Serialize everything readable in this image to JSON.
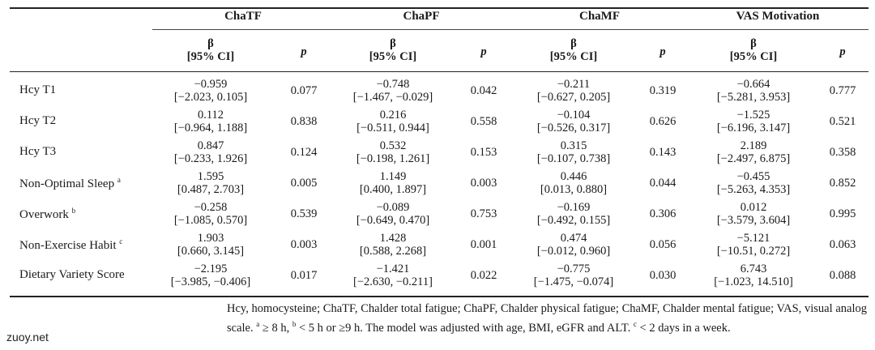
{
  "groups": [
    "ChaTF",
    "ChaPF",
    "ChaMF",
    "VAS Motivation"
  ],
  "beta_header": [
    "β",
    "[95% CI]"
  ],
  "p_header": "p",
  "rows": [
    {
      "label": "Hcy T1",
      "sup": "",
      "cells": [
        {
          "beta": "−0.959",
          "ci": "[−2.023, 0.105]",
          "p": "0.077"
        },
        {
          "beta": "−0.748",
          "ci": "[−1.467, −0.029]",
          "p": "0.042"
        },
        {
          "beta": "−0.211",
          "ci": "[−0.627, 0.205]",
          "p": "0.319"
        },
        {
          "beta": "−0.664",
          "ci": "[−5.281, 3.953]",
          "p": "0.777"
        }
      ]
    },
    {
      "label": "Hcy T2",
      "sup": "",
      "cells": [
        {
          "beta": "0.112",
          "ci": "[−0.964, 1.188]",
          "p": "0.838"
        },
        {
          "beta": "0.216",
          "ci": "[−0.511, 0.944]",
          "p": "0.558"
        },
        {
          "beta": "−0.104",
          "ci": "[−0.526, 0.317]",
          "p": "0.626"
        },
        {
          "beta": "−1.525",
          "ci": "[−6.196, 3.147]",
          "p": "0.521"
        }
      ]
    },
    {
      "label": "Hcy T3",
      "sup": "",
      "cells": [
        {
          "beta": "0.847",
          "ci": "[−0.233, 1.926]",
          "p": "0.124"
        },
        {
          "beta": "0.532",
          "ci": "[−0.198, 1.261]",
          "p": "0.153"
        },
        {
          "beta": "0.315",
          "ci": "[−0.107, 0.738]",
          "p": "0.143"
        },
        {
          "beta": "2.189",
          "ci": "[−2.497, 6.875]",
          "p": "0.358"
        }
      ]
    },
    {
      "label": "Non-Optimal Sleep",
      "sup": "a",
      "cells": [
        {
          "beta": "1.595",
          "ci": "[0.487, 2.703]",
          "p": "0.005"
        },
        {
          "beta": "1.149",
          "ci": "[0.400, 1.897]",
          "p": "0.003"
        },
        {
          "beta": "0.446",
          "ci": "[0.013, 0.880]",
          "p": "0.044"
        },
        {
          "beta": "−0.455",
          "ci": "[−5.263, 4.353]",
          "p": "0.852"
        }
      ]
    },
    {
      "label": "Overwork",
      "sup": "b",
      "cells": [
        {
          "beta": "−0.258",
          "ci": "[−1.085, 0.570]",
          "p": "0.539"
        },
        {
          "beta": "−0.089",
          "ci": "[−0.649, 0.470]",
          "p": "0.753"
        },
        {
          "beta": "−0.169",
          "ci": "[−0.492, 0.155]",
          "p": "0.306"
        },
        {
          "beta": "0.012",
          "ci": "[−3.579, 3.604]",
          "p": "0.995"
        }
      ]
    },
    {
      "label": "Non-Exercise Habit",
      "sup": "c",
      "cells": [
        {
          "beta": "1.903",
          "ci": "[0.660, 3.145]",
          "p": "0.003"
        },
        {
          "beta": "1.428",
          "ci": "[0.588, 2.268]",
          "p": "0.001"
        },
        {
          "beta": "0.474",
          "ci": "[−0.012, 0.960]",
          "p": "0.056"
        },
        {
          "beta": "−5.121",
          "ci": "[−10.51, 0.272]",
          "p": "0.063"
        }
      ]
    },
    {
      "label": "Dietary Variety Score",
      "sup": "",
      "cells": [
        {
          "beta": "−2.195",
          "ci": "[−3.985, −0.406]",
          "p": "0.017"
        },
        {
          "beta": "−1.421",
          "ci": "[−2.630, −0.211]",
          "p": "0.022"
        },
        {
          "beta": "−0.775",
          "ci": "[−1.475, −0.074]",
          "p": "0.030"
        },
        {
          "beta": "6.743",
          "ci": "[−1.023, 14.510]",
          "p": "0.088"
        }
      ]
    }
  ],
  "footnote": {
    "text1": "Hcy, homocysteine; ChaTF, Chalder total fatigue; ChaPF, Chalder physical fatigue; ChaMF, Chalder mental fatigue; VAS, visual analog scale. ",
    "sup_a": "a",
    "text2": " ≥ 8 h, ",
    "sup_b": "b",
    "text3": " < 5 h or ≥9 h. The model was adjusted with age, BMI, eGFR and ALT. ",
    "sup_c": "c",
    "text4": " < 2 days in a week."
  },
  "watermark": "zuoy.net"
}
